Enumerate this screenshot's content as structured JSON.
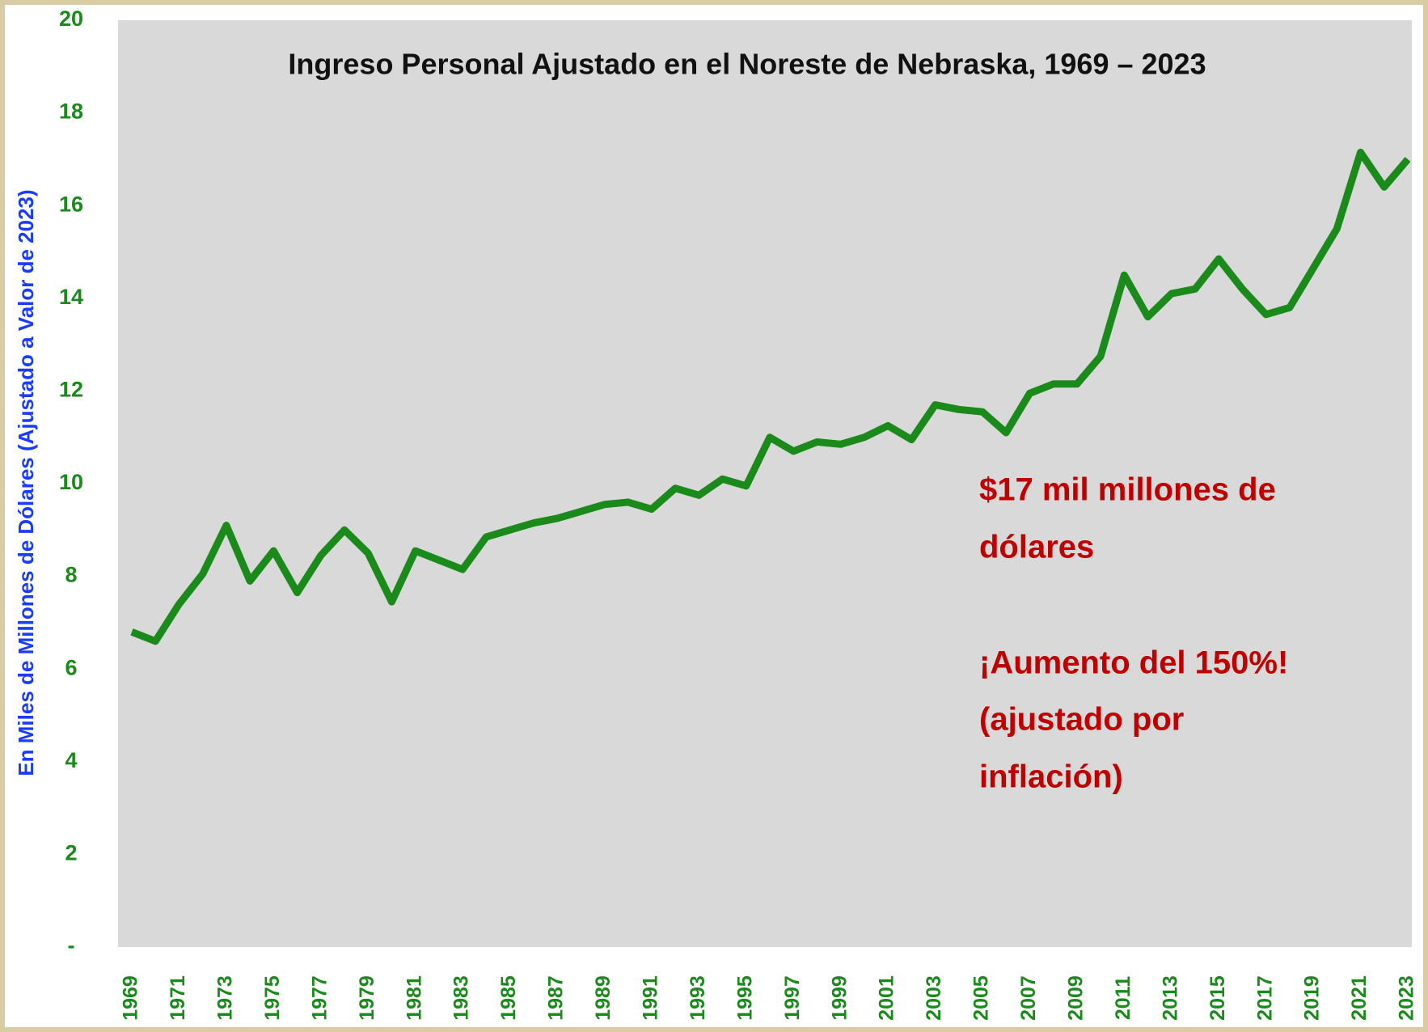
{
  "chart_data": {
    "type": "line",
    "title": "Ingreso Personal Ajustado en el Noreste de Nebraska, 1969 – 2023",
    "y_label": "En Miles de Millones de Dólares (Ajustado a Valor de 2023)",
    "annotations": [
      "$17 mil millones de",
      "dólares",
      "¡Aumento del 150%!",
      "(ajustado por",
      "inflación)"
    ],
    "x": [
      1969,
      1970,
      1971,
      1972,
      1973,
      1974,
      1975,
      1976,
      1977,
      1978,
      1979,
      1980,
      1981,
      1982,
      1983,
      1984,
      1985,
      1986,
      1987,
      1988,
      1989,
      1990,
      1991,
      1992,
      1993,
      1994,
      1995,
      1996,
      1997,
      1998,
      1999,
      2000,
      2001,
      2002,
      2003,
      2004,
      2005,
      2006,
      2007,
      2008,
      2009,
      2010,
      2011,
      2012,
      2013,
      2014,
      2015,
      2016,
      2017,
      2018,
      2019,
      2020,
      2021,
      2022,
      2023
    ],
    "series": [
      {
        "color": "#1a8a1a",
        "values": [
          6.8,
          6.6,
          7.4,
          8.05,
          9.1,
          7.9,
          8.55,
          7.65,
          8.45,
          9.0,
          8.5,
          7.45,
          8.55,
          8.35,
          8.15,
          8.85,
          9.0,
          9.15,
          9.25,
          9.4,
          9.55,
          9.6,
          9.45,
          9.9,
          9.75,
          10.1,
          9.95,
          11.0,
          10.7,
          10.9,
          10.85,
          11.0,
          11.25,
          10.95,
          11.7,
          11.6,
          11.55,
          11.1,
          11.95,
          12.15,
          12.15,
          12.75,
          14.5,
          13.6,
          14.1,
          14.2,
          14.85,
          14.2,
          13.65,
          13.8,
          14.65,
          15.5,
          17.15,
          16.4,
          17.0
        ]
      }
    ],
    "xlim": [
      1969,
      2023
    ],
    "xticks": [
      1969,
      1971,
      1973,
      1975,
      1977,
      1979,
      1981,
      1983,
      1985,
      1987,
      1989,
      1991,
      1993,
      1995,
      1997,
      1999,
      2001,
      2003,
      2005,
      2007,
      2009,
      2011,
      2013,
      2015,
      2017,
      2019,
      2021,
      2023
    ],
    "ylim": [
      0,
      20
    ],
    "yticks": [
      {
        "value": 0,
        "label": "-"
      },
      2,
      4,
      6,
      8,
      10,
      12,
      14,
      16,
      18,
      20
    ],
    "grid": false
  }
}
